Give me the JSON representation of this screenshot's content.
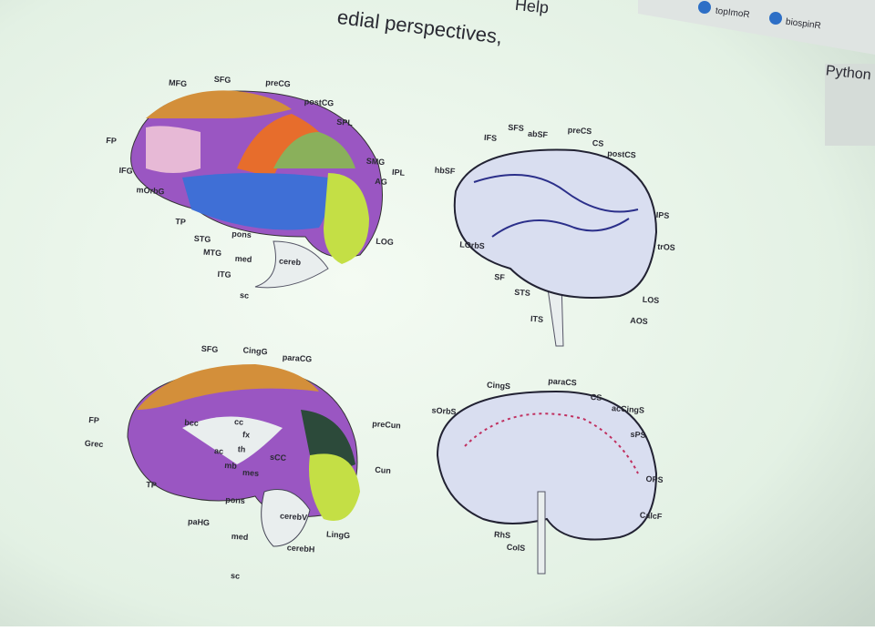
{
  "header": {
    "menu": "Help",
    "heading": "edial perspectives,"
  },
  "browser": {
    "bookmarks": [
      "topImoR",
      "biospinR"
    ],
    "tab": "Python"
  },
  "panels": [
    {
      "labels": [
        "MFG",
        "SFG",
        "preCG",
        "postCG",
        "SPL",
        "FP",
        "SMG",
        "IPL",
        "IFG",
        "AG",
        "mOrbG",
        "TP",
        "STG",
        "MTG",
        "pons",
        "ITG",
        "med",
        "cereb",
        "LOG",
        "sc"
      ]
    },
    {
      "labels": [
        "IFS",
        "SFS",
        "abSF",
        "preCS",
        "CS",
        "postCS",
        "hbSF",
        "IPS",
        "LOrbS",
        "trOS",
        "SF",
        "STS",
        "ITS",
        "LOS",
        "AOS"
      ]
    },
    {
      "labels": [
        "SFG",
        "CingG",
        "paraCG",
        "FP",
        "preCun",
        "Grec",
        "bcc",
        "cc",
        "fx",
        "th",
        "ac",
        "sCC",
        "mb",
        "mes",
        "Cun",
        "TP",
        "pons",
        "paHG",
        "cerebV",
        "med",
        "cerebH",
        "LingG",
        "sc"
      ]
    },
    {
      "labels": [
        "CingS",
        "paraCS",
        "CS",
        "sOrbS",
        "acCingS",
        "sPS",
        "OPS",
        "CalcF",
        "RhS",
        "ColS"
      ]
    }
  ]
}
